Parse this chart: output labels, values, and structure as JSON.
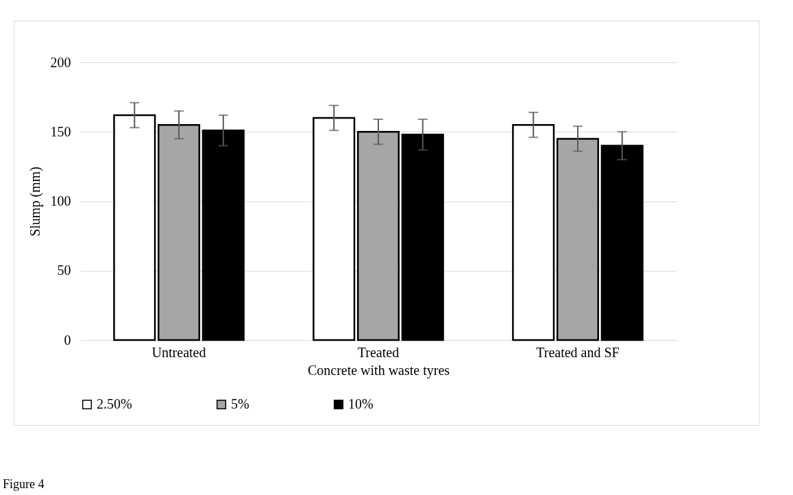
{
  "chart_data": {
    "type": "bar",
    "xlabel": "Concrete with waste tyres",
    "ylabel": "Slump (mm)",
    "categories": [
      "Untreated",
      "Treated",
      "Treated and SF"
    ],
    "series": [
      {
        "name": "2.50%",
        "color": "#ffffff",
        "values": [
          162,
          160,
          155
        ],
        "errors": [
          9,
          9,
          9
        ]
      },
      {
        "name": "5%",
        "color": "#a6a6a6",
        "values": [
          155,
          150,
          145
        ],
        "errors": [
          10,
          9,
          9
        ]
      },
      {
        "name": "10%",
        "color": "#000000",
        "values": [
          151,
          148,
          140
        ],
        "errors": [
          11,
          11,
          10
        ]
      }
    ],
    "ylim": [
      0,
      200
    ],
    "yticks": [
      0,
      50,
      100,
      150,
      200
    ],
    "grid": "y",
    "legend": "bottom",
    "annotations": [
      "Figure 4"
    ]
  }
}
